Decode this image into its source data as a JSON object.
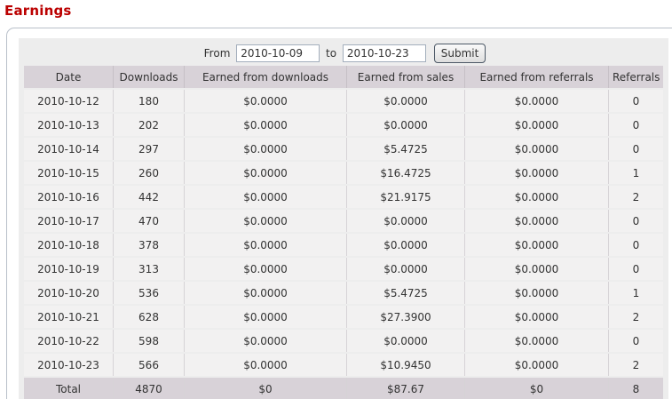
{
  "page": {
    "title": "Earnings"
  },
  "form": {
    "from_label": "From",
    "from_value": "2010-10-09",
    "to_label": "to",
    "to_value": "2010-10-23",
    "submit_label": "Submit"
  },
  "table": {
    "headers": [
      "Date",
      "Downloads",
      "Earned from downloads",
      "Earned from sales",
      "Earned from referrals",
      "Referrals"
    ],
    "rows": [
      [
        "2010-10-12",
        "180",
        "$0.0000",
        "$0.0000",
        "$0.0000",
        "0"
      ],
      [
        "2010-10-13",
        "202",
        "$0.0000",
        "$0.0000",
        "$0.0000",
        "0"
      ],
      [
        "2010-10-14",
        "297",
        "$0.0000",
        "$5.4725",
        "$0.0000",
        "0"
      ],
      [
        "2010-10-15",
        "260",
        "$0.0000",
        "$16.4725",
        "$0.0000",
        "1"
      ],
      [
        "2010-10-16",
        "442",
        "$0.0000",
        "$21.9175",
        "$0.0000",
        "2"
      ],
      [
        "2010-10-17",
        "470",
        "$0.0000",
        "$0.0000",
        "$0.0000",
        "0"
      ],
      [
        "2010-10-18",
        "378",
        "$0.0000",
        "$0.0000",
        "$0.0000",
        "0"
      ],
      [
        "2010-10-19",
        "313",
        "$0.0000",
        "$0.0000",
        "$0.0000",
        "0"
      ],
      [
        "2010-10-20",
        "536",
        "$0.0000",
        "$5.4725",
        "$0.0000",
        "1"
      ],
      [
        "2010-10-21",
        "628",
        "$0.0000",
        "$27.3900",
        "$0.0000",
        "2"
      ],
      [
        "2010-10-22",
        "598",
        "$0.0000",
        "$0.0000",
        "$0.0000",
        "0"
      ],
      [
        "2010-10-23",
        "566",
        "$0.0000",
        "$10.9450",
        "$0.0000",
        "2"
      ]
    ],
    "total_row": [
      "Total",
      "4870",
      "$0",
      "$87.67",
      "$0",
      "8"
    ]
  },
  "colors": {
    "title": "#bb0000",
    "panel_border": "#b9c0ca",
    "box_bg": "#ededed",
    "header_bg": "#d8d2d8",
    "row_bg": "#f2f1f1",
    "total_bg": "#d8d2d8",
    "text": "#333333",
    "input_border": "#a3aebc",
    "button_border": "#4c5866"
  }
}
